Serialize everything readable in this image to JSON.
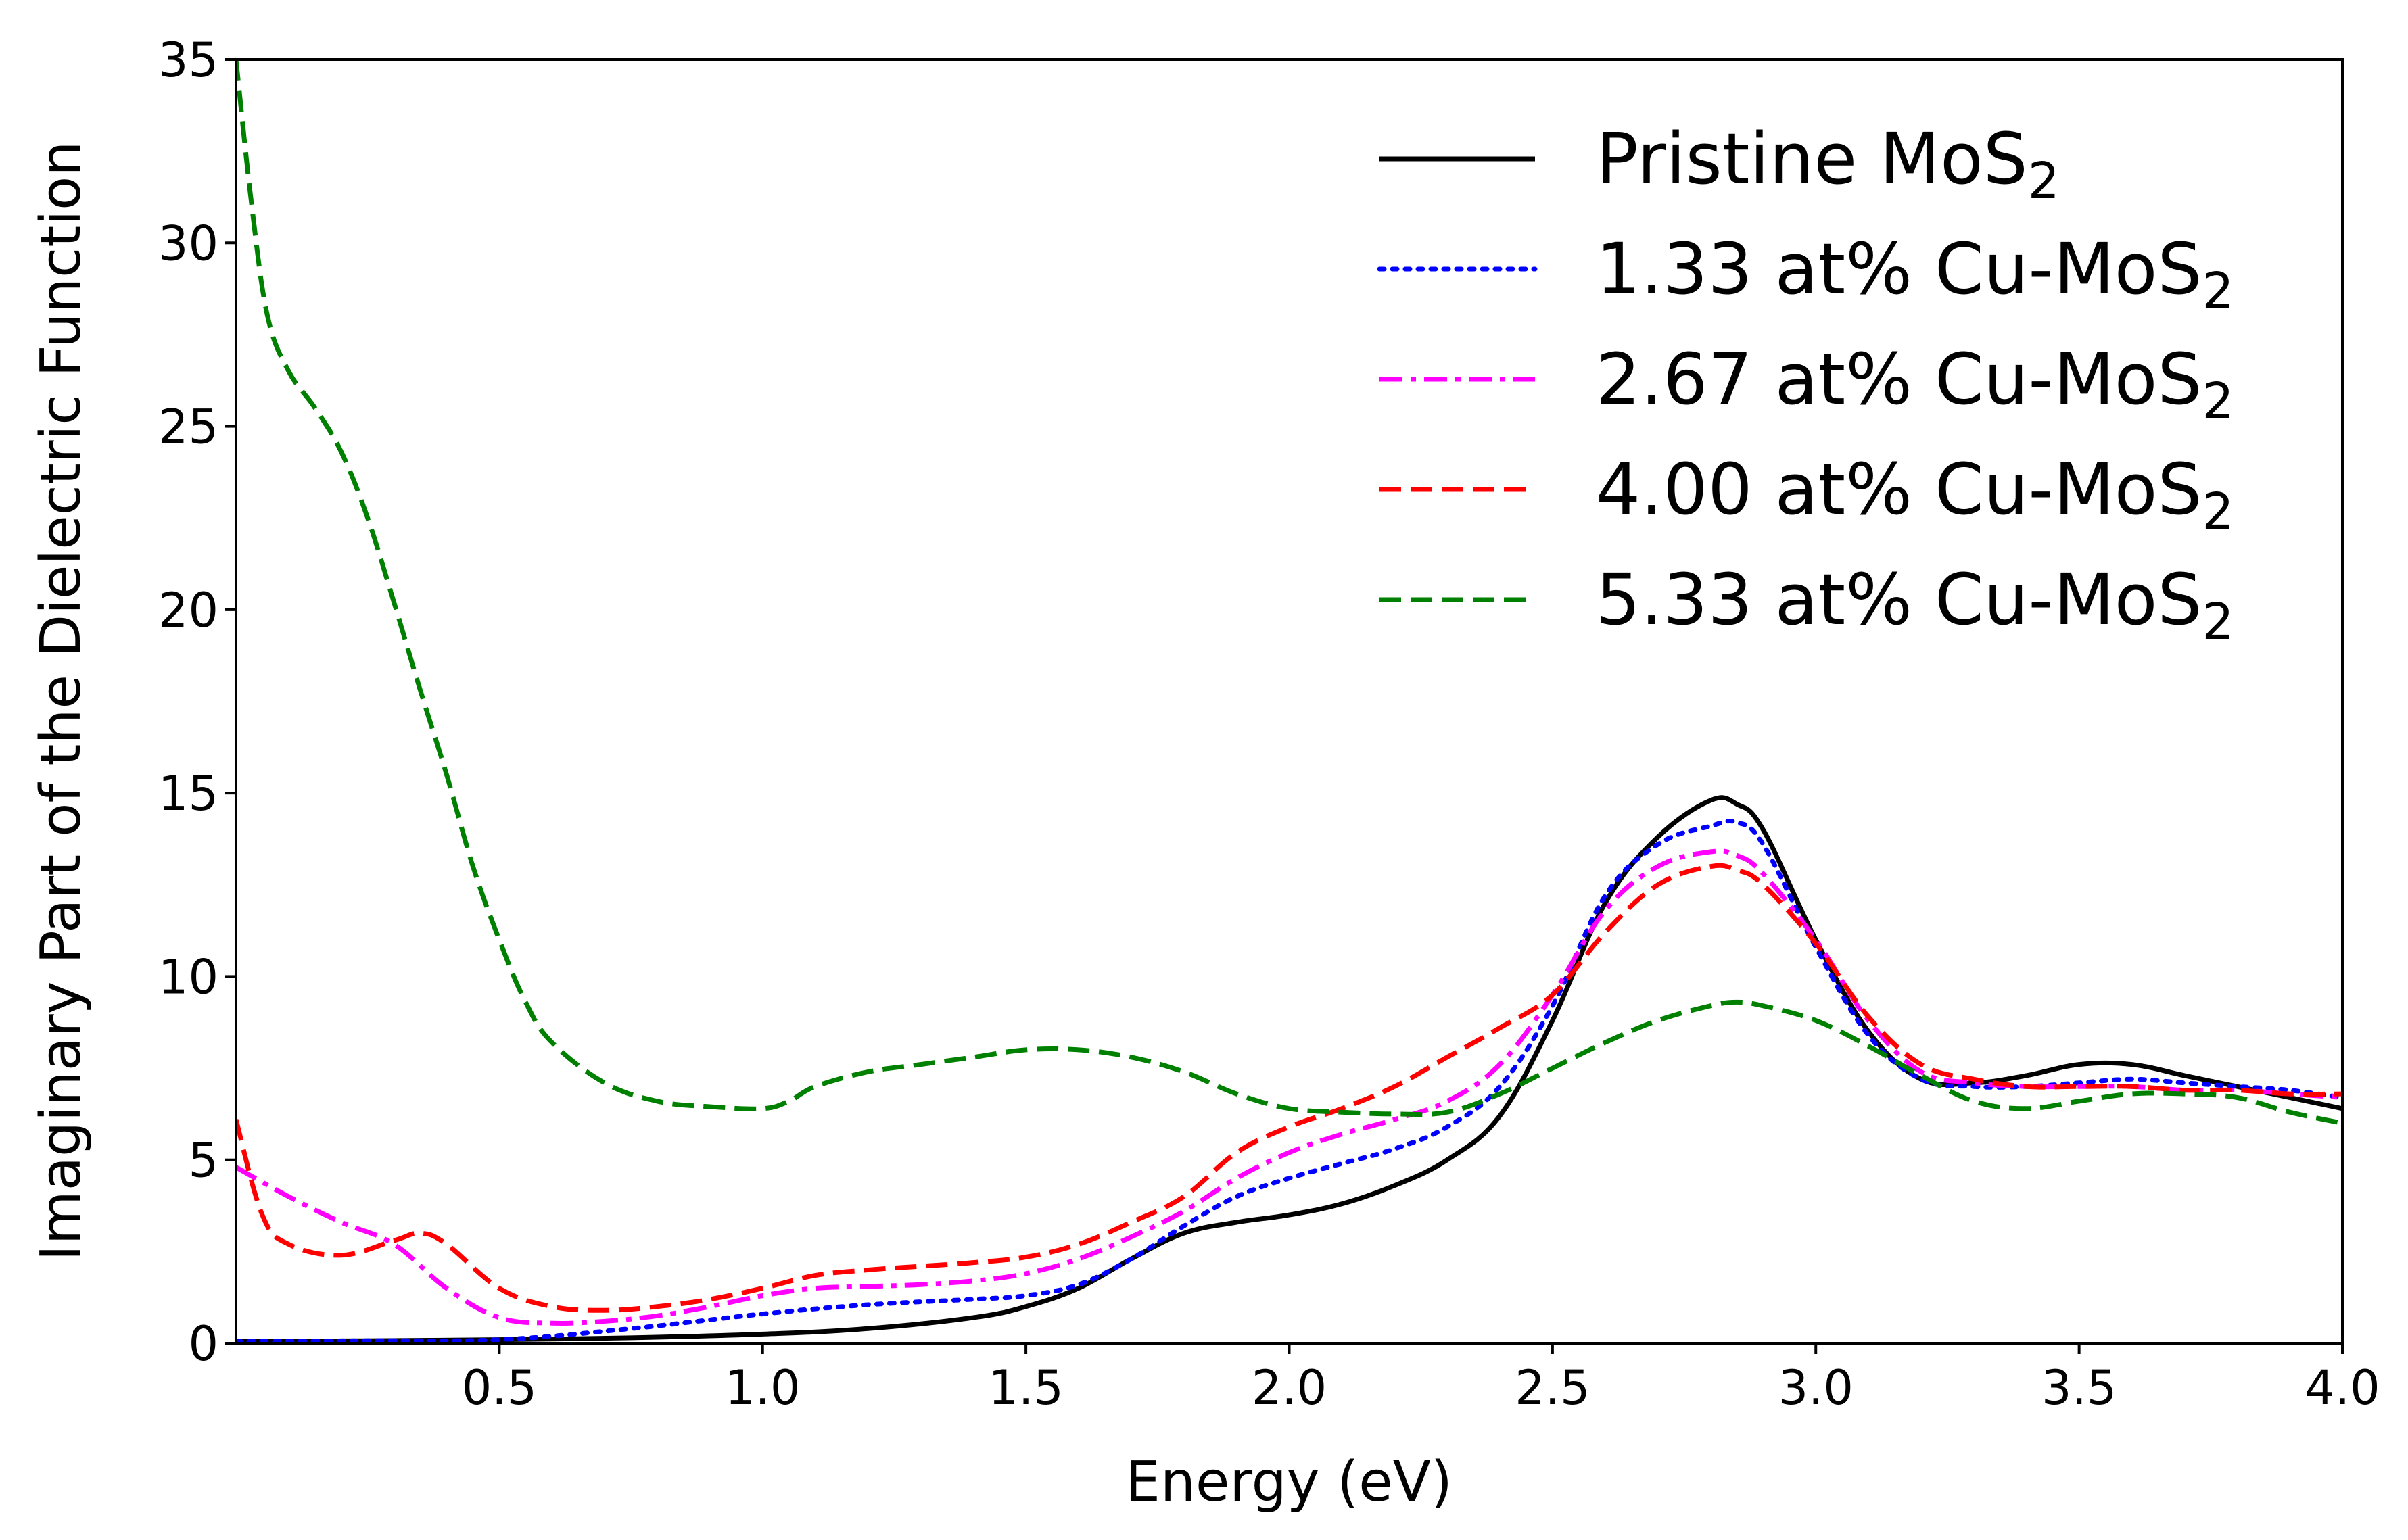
{
  "chart_data": {
    "type": "line",
    "title": "",
    "xlabel": "Energy (eV)",
    "ylabel": "Imaginary Part of the Dielectric Function",
    "xlim": [
      0.0,
      4.0
    ],
    "ylim": [
      0,
      35
    ],
    "xticks": [
      "0.5",
      "1.0",
      "1.5",
      "2.0",
      "2.5",
      "3.0",
      "3.5",
      "4.0"
    ],
    "yticks": [
      "0",
      "5",
      "10",
      "15",
      "20",
      "25",
      "30",
      "35"
    ],
    "grid": false,
    "legend_position": "top-right",
    "series": [
      {
        "name": "Pristine MoS",
        "name_subscript": "2",
        "color": "#000000",
        "style": "solid",
        "x": [
          0.0,
          0.25,
          0.5,
          0.75,
          1.0,
          1.2,
          1.4,
          1.5,
          1.6,
          1.7,
          1.8,
          1.9,
          2.0,
          2.1,
          2.2,
          2.3,
          2.4,
          2.5,
          2.6,
          2.7,
          2.8,
          2.85,
          2.9,
          3.0,
          3.1,
          3.2,
          3.3,
          3.4,
          3.5,
          3.6,
          3.7,
          3.8,
          3.9,
          4.0
        ],
        "y": [
          0.05,
          0.07,
          0.1,
          0.15,
          0.25,
          0.4,
          0.7,
          1.0,
          1.5,
          2.3,
          3.0,
          3.3,
          3.5,
          3.8,
          4.3,
          5.0,
          6.2,
          8.8,
          12.0,
          13.8,
          14.8,
          14.7,
          14.0,
          11.0,
          8.5,
          7.2,
          7.1,
          7.3,
          7.6,
          7.6,
          7.3,
          7.0,
          6.7,
          6.4
        ]
      },
      {
        "name": "1.33 at% Cu-MoS",
        "name_subscript": "2",
        "color": "#0000ff",
        "style": "dotted",
        "x": [
          0.0,
          0.25,
          0.5,
          0.75,
          1.0,
          1.2,
          1.4,
          1.5,
          1.6,
          1.7,
          1.8,
          1.9,
          2.0,
          2.1,
          2.2,
          2.3,
          2.4,
          2.5,
          2.6,
          2.7,
          2.8,
          2.85,
          2.9,
          3.0,
          3.1,
          3.2,
          3.3,
          3.4,
          3.5,
          3.6,
          3.7,
          3.8,
          3.9,
          4.0
        ],
        "y": [
          0.05,
          0.07,
          0.1,
          0.4,
          0.8,
          1.05,
          1.2,
          1.3,
          1.6,
          2.3,
          3.2,
          4.0,
          4.5,
          4.9,
          5.3,
          5.9,
          7.0,
          9.2,
          12.2,
          13.6,
          14.1,
          14.2,
          13.6,
          10.8,
          8.4,
          7.2,
          7.0,
          7.0,
          7.1,
          7.2,
          7.1,
          7.0,
          6.9,
          6.7
        ]
      },
      {
        "name": "2.67 at% Cu-MoS",
        "name_subscript": "2",
        "color": "#ff00ff",
        "style": "dashdot",
        "x": [
          0.0,
          0.1,
          0.2,
          0.3,
          0.4,
          0.5,
          0.6,
          0.7,
          0.8,
          0.9,
          1.0,
          1.1,
          1.2,
          1.3,
          1.4,
          1.5,
          1.6,
          1.7,
          1.8,
          1.9,
          2.0,
          2.1,
          2.2,
          2.3,
          2.4,
          2.5,
          2.6,
          2.7,
          2.8,
          2.85,
          2.9,
          3.0,
          3.1,
          3.2,
          3.3,
          3.4,
          3.5,
          3.6,
          3.7,
          3.8,
          3.9,
          4.0
        ],
        "y": [
          4.8,
          4.0,
          3.3,
          2.7,
          1.5,
          0.7,
          0.55,
          0.6,
          0.75,
          1.0,
          1.3,
          1.5,
          1.55,
          1.6,
          1.7,
          1.9,
          2.3,
          2.9,
          3.6,
          4.5,
          5.2,
          5.7,
          6.1,
          6.6,
          7.6,
          9.5,
          11.8,
          13.0,
          13.4,
          13.3,
          12.8,
          11.0,
          8.8,
          7.4,
          7.1,
          7.0,
          7.0,
          7.0,
          6.9,
          6.9,
          6.8,
          6.7
        ]
      },
      {
        "name": "4.00 at% Cu-MoS",
        "name_subscript": "2",
        "color": "#ff0000",
        "style": "dashed",
        "x": [
          0.0,
          0.05,
          0.1,
          0.2,
          0.3,
          0.35,
          0.4,
          0.5,
          0.6,
          0.7,
          0.8,
          0.9,
          1.0,
          1.1,
          1.2,
          1.3,
          1.4,
          1.5,
          1.6,
          1.7,
          1.8,
          1.9,
          2.0,
          2.1,
          2.2,
          2.3,
          2.4,
          2.5,
          2.6,
          2.7,
          2.8,
          2.85,
          2.9,
          3.0,
          3.1,
          3.2,
          3.3,
          3.4,
          3.5,
          3.6,
          3.7,
          3.8,
          3.9,
          4.0
        ],
        "y": [
          6.1,
          3.5,
          2.7,
          2.4,
          2.8,
          3.0,
          2.7,
          1.5,
          1.0,
          0.9,
          1.0,
          1.2,
          1.5,
          1.85,
          2.0,
          2.1,
          2.2,
          2.35,
          2.7,
          3.3,
          4.0,
          5.2,
          5.9,
          6.4,
          7.0,
          7.8,
          8.6,
          9.5,
          11.2,
          12.5,
          13.0,
          12.9,
          12.5,
          10.9,
          8.9,
          7.6,
          7.2,
          7.0,
          7.0,
          7.0,
          6.9,
          6.9,
          6.8,
          6.8
        ]
      },
      {
        "name": "5.33 at% Cu-MoS",
        "name_subscript": "2",
        "color": "#008000",
        "style": "dashed",
        "x": [
          0.0,
          0.03,
          0.06,
          0.1,
          0.15,
          0.2,
          0.25,
          0.3,
          0.35,
          0.4,
          0.45,
          0.5,
          0.55,
          0.6,
          0.7,
          0.8,
          0.9,
          1.0,
          1.05,
          1.1,
          1.2,
          1.3,
          1.4,
          1.5,
          1.6,
          1.7,
          1.8,
          1.9,
          2.0,
          2.1,
          2.2,
          2.3,
          2.4,
          2.5,
          2.6,
          2.7,
          2.8,
          2.85,
          2.9,
          3.0,
          3.1,
          3.2,
          3.3,
          3.4,
          3.5,
          3.6,
          3.7,
          3.8,
          3.9,
          4.0
        ],
        "y": [
          35.0,
          31.0,
          28.0,
          26.5,
          25.5,
          24.3,
          22.5,
          20.2,
          17.8,
          15.5,
          13.0,
          11.0,
          9.3,
          8.2,
          7.1,
          6.6,
          6.45,
          6.4,
          6.6,
          7.0,
          7.4,
          7.6,
          7.8,
          8.0,
          8.0,
          7.8,
          7.4,
          6.8,
          6.4,
          6.3,
          6.25,
          6.3,
          6.8,
          7.5,
          8.2,
          8.8,
          9.2,
          9.3,
          9.2,
          8.8,
          8.1,
          7.3,
          6.6,
          6.4,
          6.6,
          6.8,
          6.8,
          6.7,
          6.3,
          6.0
        ]
      }
    ]
  }
}
